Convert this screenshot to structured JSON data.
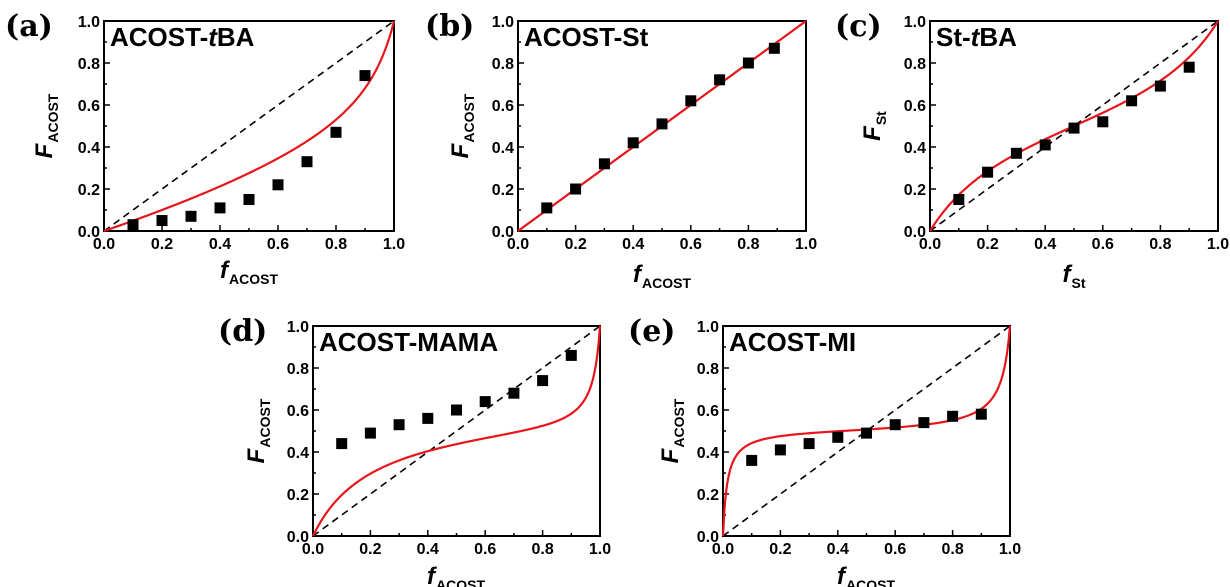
{
  "colors": {
    "fit_line": "#e8161c",
    "marker": "#000000",
    "diagonal": "#000000"
  },
  "chart_data": [
    {
      "type": "scatter",
      "panel_label": "(a)",
      "title": "ACOST-tBA",
      "title_parts": [
        "ACOST-",
        "t",
        "BA"
      ],
      "xlabel_main": "f",
      "xlabel_sub": "ACOST",
      "ylabel_main": "F",
      "ylabel_sub": "ACOST",
      "xlim": [
        0,
        1
      ],
      "ylim": [
        0,
        1
      ],
      "xticks": [
        "0.0",
        "0.2",
        "0.4",
        "0.6",
        "0.8",
        "1.0"
      ],
      "yticks": [
        "0.0",
        "0.2",
        "0.4",
        "0.6",
        "0.8",
        "1.0"
      ],
      "reference_line": "y = x (dashed)",
      "fit_r": [
        0.18,
        2.1
      ],
      "x": [
        0.1,
        0.2,
        0.3,
        0.4,
        0.5,
        0.6,
        0.7,
        0.8,
        0.9
      ],
      "y": [
        0.03,
        0.05,
        0.07,
        0.11,
        0.15,
        0.22,
        0.33,
        0.47,
        0.74
      ]
    },
    {
      "type": "scatter",
      "panel_label": "(b)",
      "title": "ACOST-St",
      "title_parts": [
        "ACOST-St"
      ],
      "xlabel_main": "f",
      "xlabel_sub": "ACOST",
      "ylabel_main": "F",
      "ylabel_sub": "ACOST",
      "xlim": [
        0,
        1
      ],
      "ylim": [
        0,
        1
      ],
      "xticks": [
        "0.0",
        "0.2",
        "0.4",
        "0.6",
        "0.8",
        "1.0"
      ],
      "yticks": [
        "0.0",
        "0.2",
        "0.4",
        "0.6",
        "0.8",
        "1.0"
      ],
      "reference_line": "y = x (dashed)",
      "fit_r": [
        1.0,
        1.0
      ],
      "x": [
        0.1,
        0.2,
        0.3,
        0.4,
        0.5,
        0.6,
        0.7,
        0.8,
        0.89
      ],
      "y": [
        0.11,
        0.2,
        0.32,
        0.42,
        0.51,
        0.62,
        0.72,
        0.8,
        0.87
      ]
    },
    {
      "type": "scatter",
      "panel_label": "(c)",
      "title": "St-tBA",
      "title_parts": [
        "St-",
        "t",
        "BA"
      ],
      "xlabel_main": "f",
      "xlabel_sub": "St",
      "ylabel_main": "F",
      "ylabel_sub": "St",
      "xlim": [
        0,
        1
      ],
      "ylim": [
        0,
        1
      ],
      "xticks": [
        "0.0",
        "0.2",
        "0.4",
        "0.6",
        "0.8",
        "1.0"
      ],
      "yticks": [
        "0.0",
        "0.2",
        "0.4",
        "0.6",
        "0.8",
        "1.0"
      ],
      "reference_line": "y = x (dashed)",
      "fit_r": [
        0.45,
        0.45
      ],
      "x": [
        0.1,
        0.2,
        0.3,
        0.4,
        0.5,
        0.6,
        0.7,
        0.8,
        0.9
      ],
      "y": [
        0.15,
        0.28,
        0.37,
        0.41,
        0.49,
        0.52,
        0.62,
        0.69,
        0.78
      ]
    },
    {
      "type": "scatter",
      "panel_label": "(d)",
      "title": "ACOST-MAMA",
      "title_parts": [
        "ACOST-MAMA"
      ],
      "xlabel_main": "f",
      "xlabel_sub": "ACOST",
      "ylabel_main": "F",
      "ylabel_sub": "ACOST",
      "xlim": [
        0,
        1
      ],
      "ylim": [
        0,
        1
      ],
      "xticks": [
        "0.0",
        "0.2",
        "0.4",
        "0.6",
        "0.8",
        "1.0"
      ],
      "yticks": [
        "0.0",
        "0.2",
        "0.4",
        "0.6",
        "0.8",
        "1.0"
      ],
      "reference_line": "y = x (dashed)",
      "fit_r": [
        0.05,
        0.35
      ],
      "x": [
        0.1,
        0.2,
        0.3,
        0.4,
        0.5,
        0.6,
        0.7,
        0.8,
        0.9
      ],
      "y": [
        0.44,
        0.49,
        0.53,
        0.56,
        0.6,
        0.64,
        0.68,
        0.74,
        0.86
      ]
    },
    {
      "type": "scatter",
      "panel_label": "(e)",
      "title": "ACOST-MI",
      "title_parts": [
        "ACOST-MI"
      ],
      "xlabel_main": "f",
      "xlabel_sub": "ACOST",
      "ylabel_main": "F",
      "ylabel_sub": "ACOST",
      "xlim": [
        0,
        1
      ],
      "ylim": [
        0,
        1
      ],
      "xticks": [
        "0.0",
        "0.2",
        "0.4",
        "0.6",
        "0.8",
        "1.0"
      ],
      "yticks": [
        "0.0",
        "0.2",
        "0.4",
        "0.6",
        "0.8",
        "1.0"
      ],
      "reference_line": "y = x (dashed)",
      "fit_r": [
        0.06,
        0.03
      ],
      "x": [
        0.1,
        0.2,
        0.3,
        0.4,
        0.5,
        0.6,
        0.7,
        0.8,
        0.9
      ],
      "y": [
        0.36,
        0.41,
        0.44,
        0.47,
        0.49,
        0.53,
        0.54,
        0.57,
        0.58
      ]
    }
  ]
}
